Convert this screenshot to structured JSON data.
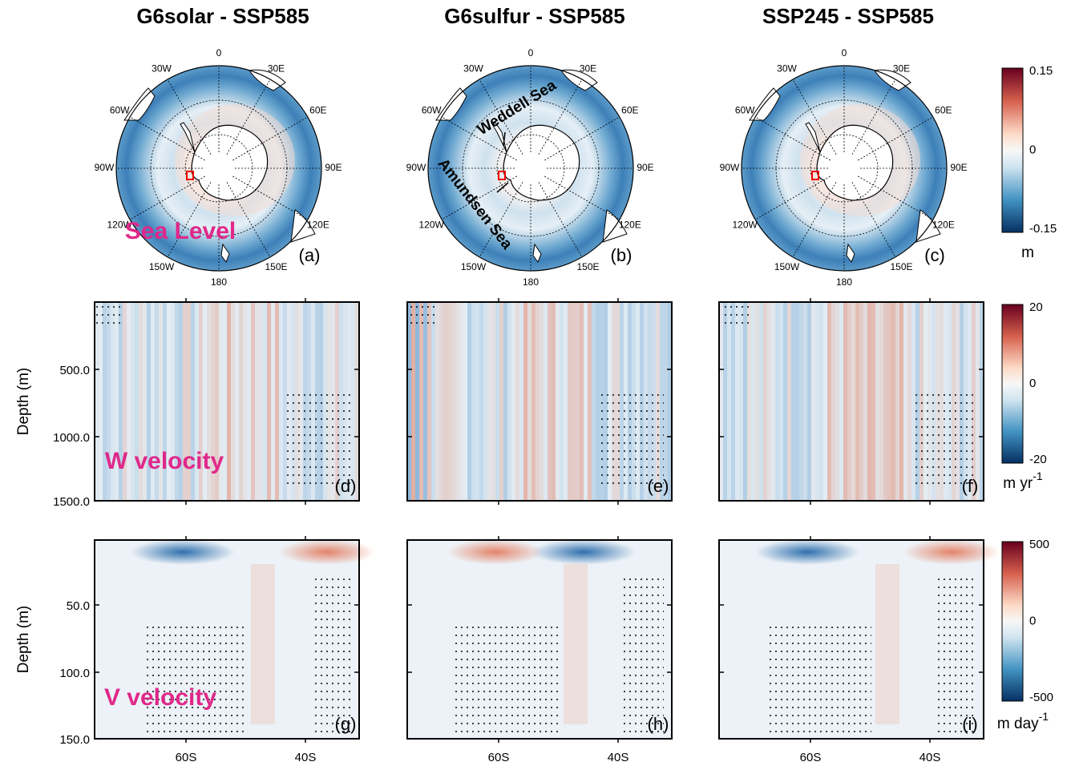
{
  "columns": [
    {
      "title": "G6solar - SSP585"
    },
    {
      "title": "G6sulfur - SSP585"
    },
    {
      "title": "SSP245 - SSP585"
    }
  ],
  "map_longitudes": [
    "0",
    "30E",
    "60E",
    "90E",
    "120E",
    "150E",
    "180",
    "150W",
    "120W",
    "90W",
    "60W",
    "30W"
  ],
  "panel_labels": [
    "(a)",
    "(b)",
    "(c)",
    "(d)",
    "(e)",
    "(f)",
    "(g)",
    "(h)",
    "(i)"
  ],
  "row_annotations": [
    "Sea Level",
    "W velocity",
    "V velocity"
  ],
  "map_annotations": [
    "Weddell Sea",
    "Amundsen Sea"
  ],
  "depth_axis_title": "Depth (m)",
  "w_depth_ticks": [
    "500.0",
    "1000.0",
    "1500.0"
  ],
  "v_depth_ticks": [
    "50.0",
    "100.0",
    "150.0"
  ],
  "lat_ticks": [
    "60S",
    "40S"
  ],
  "colorbars": [
    {
      "ticks": [
        "0.15",
        "0",
        "-0.15"
      ],
      "unit": "m"
    },
    {
      "ticks": [
        "20",
        "0",
        "-20"
      ],
      "unit": "m yr",
      "unit_exponent": "-1"
    },
    {
      "ticks": [
        "500",
        "0",
        "-500"
      ],
      "unit": "m day",
      "unit_exponent": "-1"
    }
  ]
}
